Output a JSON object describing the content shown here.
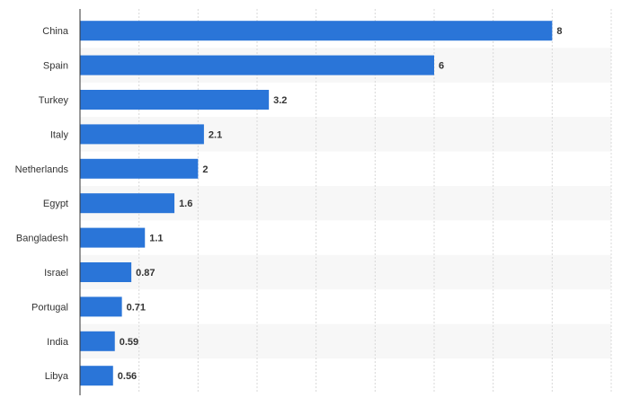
{
  "chart_data": {
    "type": "bar",
    "orientation": "horizontal",
    "categories": [
      "China",
      "Spain",
      "Turkey",
      "Italy",
      "Netherlands",
      "Egypt",
      "Bangladesh",
      "Israel",
      "Portugal",
      "India",
      "Libya"
    ],
    "values": [
      8,
      6,
      3.2,
      2.1,
      2,
      1.6,
      1.1,
      0.87,
      0.71,
      0.59,
      0.56
    ],
    "value_labels": [
      "8",
      "6",
      "3.2",
      "2.1",
      "2",
      "1.6",
      "1.1",
      "0.87",
      "0.71",
      "0.59",
      "0.56"
    ],
    "title": "",
    "xlabel": "",
    "ylabel": "",
    "xlim": [
      0,
      9
    ],
    "grid": "vertical dashed",
    "bar_color": "#2a75d8",
    "alt_row_color": "#f7f7f7"
  }
}
